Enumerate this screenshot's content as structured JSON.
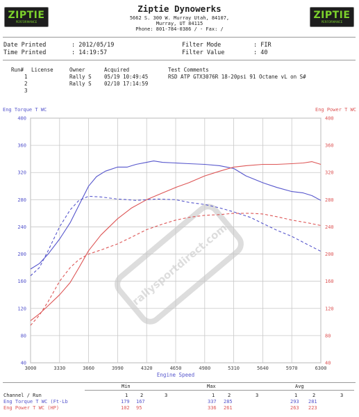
{
  "header": {
    "logo_text": "ZIPTIE",
    "logo_subtext": "PERFORMANCE",
    "company": "Ziptie Dynowerks",
    "address_lines": [
      "5662 S. 300 W. Murray Utah, 84107,",
      "Murray, UT  84115",
      "Phone: 801-784-0386 /  - Fax:  /"
    ]
  },
  "info": {
    "date_label": "Date Printed",
    "date_value": ": 2012/05/19",
    "time_label": "Time Printed",
    "time_value": ": 14:19:57",
    "filter_mode_label": "Filter Mode",
    "filter_mode_value": ": FIR",
    "filter_value_label": "Filter Value",
    "filter_value_value": ": 40"
  },
  "runs": {
    "headers": [
      "Run#",
      "License",
      "Owner",
      "Acquired",
      "Test Comments"
    ],
    "rows": [
      {
        "run": "1",
        "license": "",
        "owner": "Rally S",
        "acquired": "05/19 10:49:45",
        "comments": "RSD ATP GTX3076R 18-20psi 91 Octane vL on S#"
      },
      {
        "run": "2",
        "license": "",
        "owner": "Rally S",
        "acquired": "02/10 17:14:59",
        "comments": ""
      },
      {
        "run": "3",
        "license": "",
        "owner": "",
        "acquired": "",
        "comments": ""
      }
    ]
  },
  "watermark": "rallysportdirect.com",
  "colors": {
    "torque": "#5555cc",
    "power": "#dd5555",
    "grid": "#c8c8c8"
  },
  "chart_data": {
    "type": "line",
    "xlabel": "Engine Speed",
    "ylabel_left": "Eng Torque T WC",
    "ylabel_right": "Eng Power T WC",
    "xlim": [
      3000,
      6300
    ],
    "ylim": [
      40,
      400
    ],
    "x_ticks": [
      3000,
      3330,
      3660,
      3990,
      4320,
      4650,
      4980,
      5310,
      5640,
      5970,
      6300
    ],
    "y_ticks": [
      40,
      80,
      120,
      160,
      200,
      240,
      280,
      320,
      360,
      400
    ],
    "grid": true,
    "series": [
      {
        "name": "Eng Torque T WC",
        "run": 1,
        "axis": "left",
        "style": "solid",
        "x": [
          3000,
          3100,
          3200,
          3330,
          3450,
          3550,
          3660,
          3750,
          3850,
          3990,
          4100,
          4200,
          4320,
          4400,
          4500,
          4650,
          4800,
          4980,
          5150,
          5310,
          5450,
          5640,
          5800,
          5970,
          6100,
          6200,
          6300
        ],
        "y": [
          178,
          186,
          200,
          222,
          246,
          272,
          300,
          314,
          322,
          328,
          328,
          332,
          335,
          337,
          335,
          334,
          333,
          332,
          330,
          326,
          315,
          305,
          298,
          292,
          290,
          286,
          279
        ]
      },
      {
        "name": "Eng Torque T WC",
        "run": 2,
        "axis": "left",
        "style": "dashed",
        "x": [
          3000,
          3100,
          3200,
          3330,
          3450,
          3550,
          3660,
          3800,
          3990,
          4100,
          4200,
          4320,
          4450,
          4650,
          4800,
          4980,
          5150,
          5310,
          5500,
          5640,
          5800,
          5970,
          6150,
          6300
        ],
        "y": [
          168,
          180,
          205,
          240,
          265,
          279,
          285,
          284,
          281,
          280,
          279,
          280,
          281,
          280,
          276,
          273,
          268,
          262,
          254,
          245,
          235,
          226,
          214,
          204
        ]
      },
      {
        "name": "Eng Power T WC",
        "run": 1,
        "axis": "right",
        "style": "solid",
        "x": [
          3000,
          3100,
          3200,
          3330,
          3450,
          3550,
          3660,
          3800,
          3990,
          4150,
          4320,
          4500,
          4650,
          4800,
          4980,
          5150,
          5310,
          5450,
          5640,
          5800,
          5970,
          6100,
          6200,
          6300
        ],
        "y": [
          102,
          112,
          124,
          140,
          158,
          180,
          205,
          228,
          252,
          268,
          280,
          290,
          298,
          305,
          315,
          322,
          328,
          330,
          332,
          332,
          333,
          334,
          336,
          332
        ]
      },
      {
        "name": "Eng Power T WC",
        "run": 2,
        "axis": "right",
        "style": "dashed",
        "x": [
          3000,
          3100,
          3200,
          3330,
          3450,
          3550,
          3660,
          3800,
          3990,
          4150,
          4320,
          4500,
          4650,
          4800,
          4980,
          5150,
          5310,
          5500,
          5640,
          5800,
          5970,
          6150,
          6300
        ],
        "y": [
          95,
          110,
          130,
          160,
          180,
          192,
          200,
          206,
          215,
          225,
          236,
          244,
          250,
          254,
          257,
          258,
          260,
          260,
          259,
          255,
          250,
          246,
          242
        ]
      }
    ]
  },
  "summary": {
    "headers": {
      "channel": "Channel / Run",
      "min": "Min",
      "max": "Max",
      "avg": "Avg"
    },
    "run_labels": [
      "1",
      "2",
      "3"
    ],
    "rows": [
      {
        "label": "Eng Torque T WC (Ft-Lb",
        "min": [
          "179",
          "167",
          ""
        ],
        "max": [
          "337",
          "285",
          ""
        ],
        "avg": [
          "293",
          "281",
          ""
        ]
      },
      {
        "label": "Eng Power T WC (HP)",
        "min": [
          "102",
          "95",
          ""
        ],
        "max": [
          "336",
          "261",
          ""
        ],
        "avg": [
          "263",
          "223",
          ""
        ]
      }
    ]
  }
}
